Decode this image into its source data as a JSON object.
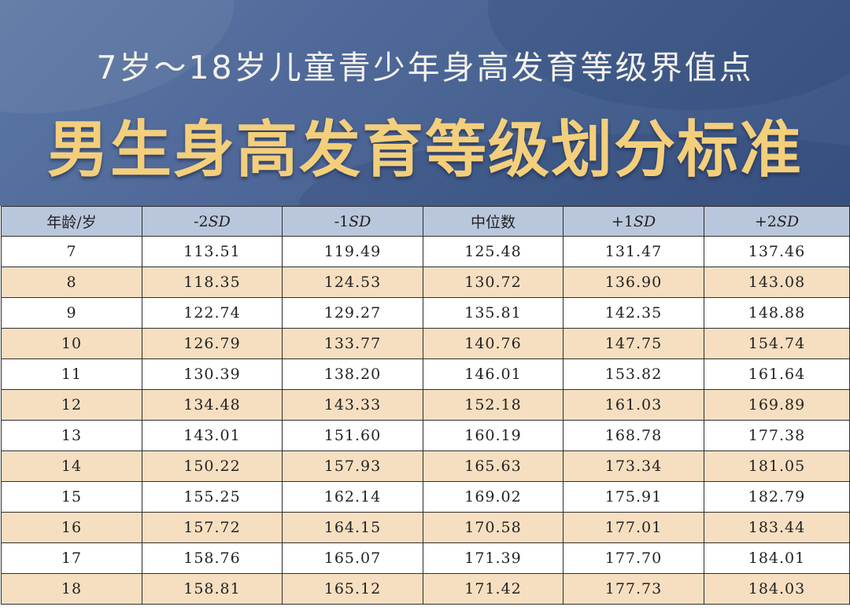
{
  "header": {
    "subtitle": "7岁～18岁儿童青少年身高发育等级界值点",
    "title": "男生身高发育等级划分标准"
  },
  "colors": {
    "banner": "#4f6998",
    "title": "#f3cf7c",
    "header_row": "#b9c7dc",
    "stripe": "#f6dfc0"
  },
  "table": {
    "columns": [
      "年龄/岁",
      "-2SD",
      "-1SD",
      "中位数",
      "+1SD",
      "+2SD"
    ],
    "rows": [
      [
        "7",
        "113.51",
        "119.49",
        "125.48",
        "131.47",
        "137.46"
      ],
      [
        "8",
        "118.35",
        "124.53",
        "130.72",
        "136.90",
        "143.08"
      ],
      [
        "9",
        "122.74",
        "129.27",
        "135.81",
        "142.35",
        "148.88"
      ],
      [
        "10",
        "126.79",
        "133.77",
        "140.76",
        "147.75",
        "154.74"
      ],
      [
        "11",
        "130.39",
        "138.20",
        "146.01",
        "153.82",
        "161.64"
      ],
      [
        "12",
        "134.48",
        "143.33",
        "152.18",
        "161.03",
        "169.89"
      ],
      [
        "13",
        "143.01",
        "151.60",
        "160.19",
        "168.78",
        "177.38"
      ],
      [
        "14",
        "150.22",
        "157.93",
        "165.63",
        "173.34",
        "181.05"
      ],
      [
        "15",
        "155.25",
        "162.14",
        "169.02",
        "175.91",
        "182.79"
      ],
      [
        "16",
        "157.72",
        "164.15",
        "170.58",
        "177.01",
        "183.44"
      ],
      [
        "17",
        "158.76",
        "165.07",
        "171.39",
        "177.70",
        "184.01"
      ],
      [
        "18",
        "158.81",
        "165.12",
        "171.42",
        "177.73",
        "184.03"
      ]
    ]
  }
}
